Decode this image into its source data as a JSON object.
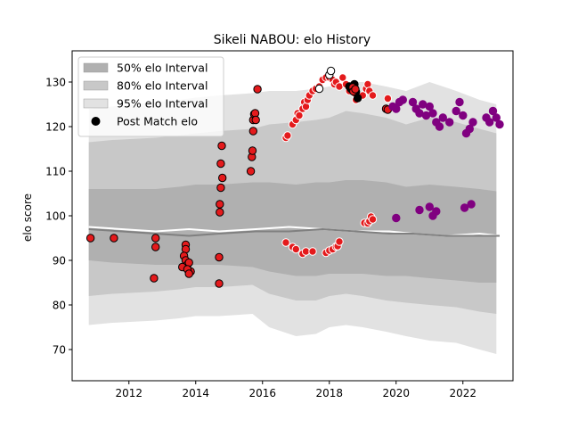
{
  "chart_data": {
    "type": "scatter",
    "title": "Sikeli NABOU: elo History",
    "xlabel": "",
    "ylabel": "elo score",
    "xlim": [
      2010.3,
      2023.5
    ],
    "ylim": [
      63,
      137
    ],
    "xticks": [
      2012,
      2014,
      2016,
      2018,
      2020,
      2022
    ],
    "yticks": [
      70,
      80,
      90,
      100,
      110,
      120,
      130
    ],
    "grid": false,
    "legend_position": "top-left",
    "legend": [
      {
        "label": "50% elo Interval",
        "color": "#b0b0b0"
      },
      {
        "label": "80% elo Interval",
        "color": "#c8c8c8"
      },
      {
        "label": "95% elo Interval",
        "color": "#e2e2e2"
      },
      {
        "label": "Post Match elo",
        "color": "#000000"
      }
    ],
    "bands": {
      "x": [
        2010.8,
        2011.5,
        2012.8,
        2013.5,
        2014.0,
        2014.7,
        2015.7,
        2016.2,
        2017.0,
        2017.6,
        2018.0,
        2018.5,
        2019.0,
        2019.7,
        2020.3,
        2021.0,
        2021.8,
        2022.5,
        2023.0
      ],
      "p95_upper": [
        124,
        124.5,
        125.5,
        126,
        126.5,
        127,
        127.5,
        128,
        128,
        128.5,
        129,
        130,
        130,
        129,
        128,
        130,
        128,
        126,
        125
      ],
      "p95_lower": [
        75.5,
        76,
        76.5,
        77,
        77.5,
        77.5,
        78,
        75,
        73,
        73.5,
        75,
        75.5,
        75,
        74,
        73,
        72,
        71.5,
        70,
        69
      ],
      "p80_upper": [
        116.5,
        117,
        117.5,
        118,
        118.5,
        119,
        119.5,
        120.5,
        121,
        121.5,
        122,
        123.5,
        123,
        122,
        120.5,
        122,
        121,
        119.5,
        118.5
      ],
      "p80_lower": [
        82,
        82.5,
        83,
        83.5,
        84,
        84,
        84.5,
        82.5,
        81,
        81,
        82,
        82.5,
        82,
        81,
        80.5,
        80,
        79.5,
        78.5,
        78
      ],
      "p50_upper": [
        106,
        106,
        106,
        106.5,
        107,
        107,
        107.5,
        107.5,
        107,
        107.5,
        107.5,
        108,
        108,
        107.5,
        106.5,
        107,
        106.5,
        106,
        105.5
      ],
      "p50_lower": [
        90,
        89.5,
        89,
        89,
        89,
        89,
        88.5,
        87.5,
        86.5,
        86.5,
        87,
        87,
        87,
        86.5,
        86.5,
        86,
        85.5,
        85,
        85
      ]
    },
    "median_lines": [
      {
        "color": "#ffffff",
        "x": [
          2010.8,
          2012.8,
          2013.8,
          2014.7,
          2015.8,
          2016.8,
          2017.8,
          2018.8,
          2019.8,
          2020.5,
          2021.5,
          2022.5,
          2023.1
        ],
        "y": [
          97.5,
          96.5,
          97,
          96.5,
          97,
          97.5,
          97,
          96.5,
          96.5,
          96,
          95.5,
          96,
          95.5
        ]
      },
      {
        "color": "#808080",
        "x": [
          2010.8,
          2012.8,
          2013.8,
          2014.7,
          2015.8,
          2016.8,
          2017.8,
          2018.8,
          2019.8,
          2020.5,
          2021.5,
          2022.5,
          2023.1
        ],
        "y": [
          97,
          96,
          95.5,
          96,
          96.5,
          96.5,
          97,
          96.5,
          96,
          96,
          95.5,
          95.5,
          95.5
        ]
      }
    ],
    "series": [
      {
        "fill": "#e41a1c",
        "edge": "#000000",
        "x": [
          2010.85,
          2011.55,
          2012.75,
          2012.8,
          2012.8,
          2013.7,
          2013.7,
          2013.65,
          2013.7,
          2013.75,
          2013.6,
          2013.8,
          2013.85,
          2013.75,
          2013.8,
          2014.7,
          2014.7,
          2014.72,
          2014.72,
          2014.75,
          2014.75,
          2014.78,
          2014.8,
          2015.65,
          2015.68,
          2015.7,
          2015.72,
          2015.72,
          2015.75,
          2015.78,
          2015.8,
          2015.85
        ],
        "y": [
          95,
          95,
          86,
          93,
          95,
          93.5,
          92.5,
          91,
          90,
          89,
          88.5,
          89.5,
          87.5,
          88,
          87,
          84.8,
          90.7,
          100.8,
          102.6,
          106.3,
          111.7,
          115.7,
          108.5,
          110,
          113.2,
          114.6,
          119,
          121.5,
          122.8,
          123,
          121.5,
          128.4
        ]
      },
      {
        "fill": "#e41a1c",
        "edge": "#ffffff",
        "x": [
          2016.7,
          2016.75,
          2016.9,
          2017.0,
          2017.05,
          2017.1,
          2017.2,
          2017.25,
          2017.3,
          2017.35,
          2017.4,
          2017.5,
          2017.6,
          2017.7,
          2017.8,
          2017.9,
          2018.0,
          2018.05,
          2018.1,
          2018.15,
          2018.2,
          2018.3,
          2018.4,
          2018.5,
          2018.6,
          2018.75,
          2018.8,
          2019.0,
          2019.1,
          2019.15,
          2019.2,
          2019.3,
          2016.7,
          2016.9,
          2017.0,
          2017.2,
          2017.3,
          2017.5,
          2017.9,
          2018.0,
          2018.1,
          2018.2,
          2018.25,
          2018.3,
          2019.05,
          2019.15,
          2019.2,
          2019.25,
          2019.3,
          2019.75,
          2019.8
        ],
        "y": [
          117.5,
          118,
          120.5,
          121.5,
          123,
          122.5,
          124,
          125.5,
          124.5,
          126,
          127,
          128,
          128.5,
          129,
          130.5,
          131,
          131,
          132.5,
          130.5,
          129.5,
          130,
          129,
          131,
          129.5,
          128,
          127.5,
          126,
          127,
          128.5,
          129.5,
          128,
          127,
          94,
          93,
          92.5,
          91.5,
          92,
          92,
          91.7,
          92.2,
          92.5,
          93.1,
          93.2,
          94.2,
          98.4,
          98.3,
          98.8,
          99.8,
          99.2,
          126.3,
          124
        ]
      },
      {
        "fill": "#ffffff",
        "edge": "#000000",
        "x": [
          2017.7,
          2018.0,
          2018.05
        ],
        "y": [
          128.5,
          131.6,
          132.5
        ]
      },
      {
        "fill": "#000000",
        "edge": "#000000",
        "x": [
          2018.6,
          2018.65,
          2018.7,
          2018.75,
          2018.8,
          2018.85
        ],
        "y": [
          129,
          128.5,
          128.2,
          129.5,
          127.8,
          126.4
        ]
      },
      {
        "fill": "#e41a1c",
        "edge": "#000000",
        "x": [
          2018.7,
          2018.72,
          2018.78,
          2019.7,
          2019.75
        ],
        "y": [
          128.8,
          127.9,
          128.4,
          124,
          123.8
        ]
      },
      {
        "fill": "#800080",
        "edge": "#800080",
        "x": [
          2019.9,
          2020.0,
          2020.1,
          2020.2,
          2020.5,
          2020.6,
          2020.7,
          2020.8,
          2020.9,
          2021.0,
          2021.1,
          2021.2,
          2021.3,
          2021.4,
          2021.6,
          2021.8,
          2021.9,
          2022.0,
          2022.1,
          2022.2,
          2022.3,
          2022.7,
          2022.8,
          2022.9,
          2023.0,
          2023.1,
          2020.0,
          2020.7,
          2021.0,
          2021.1,
          2021.2,
          2022.05,
          2022.25
        ],
        "y": [
          124.5,
          124,
          125.5,
          126,
          125.5,
          124,
          123,
          125,
          122.5,
          124.5,
          123,
          121,
          120,
          122,
          121,
          123.5,
          125.5,
          122.5,
          118.5,
          119.5,
          121,
          122,
          121,
          123.5,
          122,
          120.5,
          99.5,
          101.3,
          102,
          100,
          101,
          101.8,
          102.6
        ]
      }
    ]
  }
}
